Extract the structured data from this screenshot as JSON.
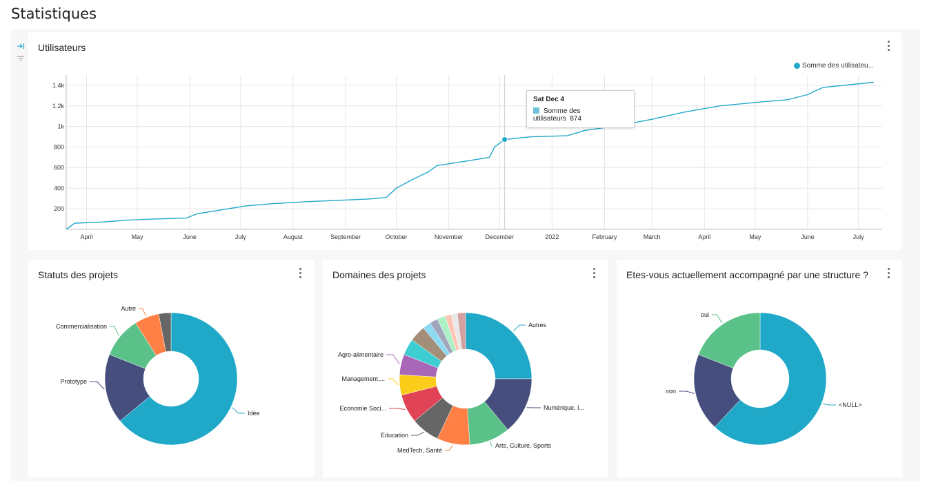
{
  "page": {
    "title": "Statistiques"
  },
  "colors": {
    "accent": "#20a8c9"
  },
  "icons": {
    "collapse": "arrow-right-bar-icon",
    "filter": "filter-icon",
    "menu": "kebab-menu-icon"
  },
  "panels": {
    "users": {
      "title": "Utilisateurs"
    },
    "statuts": {
      "title": "Statuts des projets"
    },
    "domaines": {
      "title": "Domaines des projets"
    },
    "accomp": {
      "title": "Etes-vous actuellement accompagné par une structure ?"
    }
  },
  "tooltip": {
    "title": "Sat Dec 4",
    "series": "Somme des utilisateurs",
    "value": "874"
  },
  "chart_data": [
    {
      "type": "line",
      "legend": [
        "Somme des utilisateu..."
      ],
      "legend_position": "top-right",
      "grid": true,
      "x_ticks": [
        "April",
        "May",
        "June",
        "July",
        "August",
        "September",
        "October",
        "November",
        "December",
        "2022",
        "February",
        "March",
        "April",
        "May",
        "June",
        "July"
      ],
      "y_ticks": [
        "200",
        "400",
        "600",
        "800",
        "1k",
        "1.2k",
        "1.4k"
      ],
      "ylim": [
        0,
        1500
      ],
      "series": [
        {
          "name": "Somme des utilisateurs",
          "x": [
            "2021-03-20",
            "2021-03-25",
            "2021-04-10",
            "2021-04-25",
            "2021-05-10",
            "2021-05-30",
            "2021-06-05",
            "2021-06-20",
            "2021-07-05",
            "2021-07-20",
            "2021-08-10",
            "2021-08-25",
            "2021-09-15",
            "2021-09-25",
            "2021-10-01",
            "2021-10-10",
            "2021-10-20",
            "2021-10-25",
            "2021-11-10",
            "2021-11-25",
            "2021-11-28",
            "2021-12-04",
            "2021-12-20",
            "2022-01-10",
            "2022-01-20",
            "2022-02-10",
            "2022-03-01",
            "2022-03-20",
            "2022-04-10",
            "2022-05-05",
            "2022-05-20",
            "2022-06-01",
            "2022-06-10",
            "2022-07-10"
          ],
          "values": [
            0,
            60,
            70,
            90,
            100,
            110,
            150,
            190,
            230,
            250,
            270,
            280,
            295,
            310,
            400,
            480,
            560,
            620,
            660,
            700,
            800,
            874,
            900,
            910,
            960,
            1010,
            1070,
            1140,
            1200,
            1240,
            1260,
            1310,
            1380,
            1430
          ]
        }
      ]
    },
    {
      "type": "pie",
      "title": "Statuts des projets",
      "labels": [
        "Idée",
        "Prototype",
        "Commercialisation",
        "Autre",
        ""
      ],
      "values": [
        64,
        17,
        10,
        6,
        3
      ],
      "colors": [
        "#20a8c9",
        "#454e7c",
        "#5ac189",
        "#ff7f44",
        "#666666"
      ]
    },
    {
      "type": "pie",
      "title": "Domaines des projets",
      "labels": [
        "Autres",
        "Numérique, I...",
        "Arts, Culture, Sports",
        "MedTech, Santé",
        "Education",
        "Economie Soci...",
        "Management,...",
        "Agro-alimentaire",
        "",
        "",
        "",
        "",
        "",
        "",
        "",
        ""
      ],
      "values": [
        25,
        14,
        10,
        8,
        7,
        7,
        5,
        5,
        4,
        4,
        2,
        2,
        2,
        1.5,
        1.5,
        2
      ],
      "colors": [
        "#20a8c9",
        "#454e7c",
        "#5ac189",
        "#ff7f44",
        "#666666",
        "#e04355",
        "#fccc1a",
        "#a868b7",
        "#3cced0",
        "#a38f79",
        "#8cdaf2",
        "#a1a6bd",
        "#acf0c6",
        "#ffc5b4",
        "#e8e8e8",
        "#d4a0a0"
      ]
    },
    {
      "type": "pie",
      "title": "Etes-vous actuellement accompagné par une structure ?",
      "labels": [
        "<NULL>",
        "non",
        "oui"
      ],
      "values": [
        62,
        19,
        19
      ],
      "colors": [
        "#20a8c9",
        "#454e7c",
        "#5ac189"
      ]
    }
  ]
}
